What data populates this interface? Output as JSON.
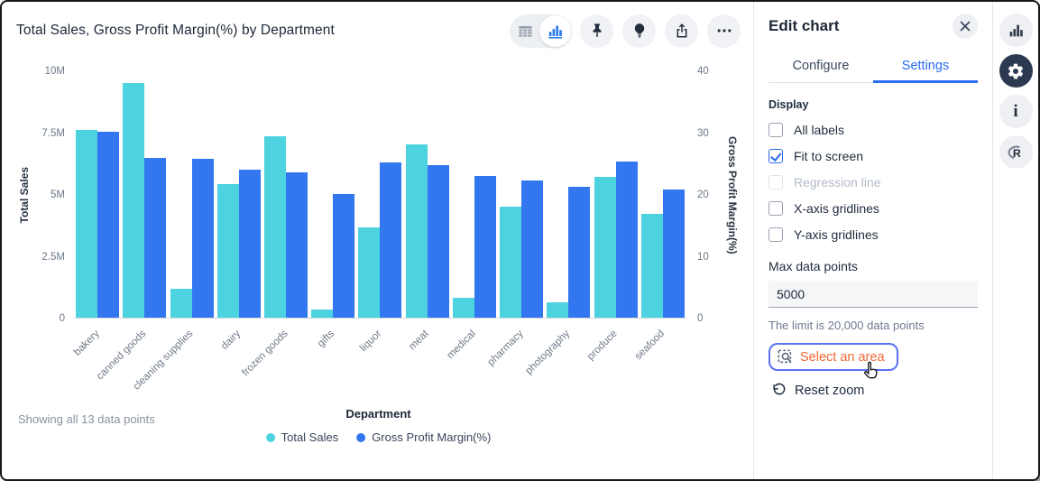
{
  "colors": {
    "series_total_sales": "#4CD3DF",
    "series_gross_profit_margin": "#3277EF",
    "accent_blue": "#2B6CF0",
    "action_orange": "#EF6A33",
    "focus_ring_blue": "#5A72F3",
    "active_rail_bg": "#2C3950"
  },
  "chart": {
    "title": "Total Sales, Gross Profit Margin(%) by Department",
    "footer_note": "Showing all 13 data points"
  },
  "chart_data": {
    "type": "bar",
    "title": "Total Sales, Gross Profit Margin(%) by Department",
    "categories": [
      "bakery",
      "canned goods",
      "cleaning supplies",
      "dairy",
      "frozen goods",
      "gifts",
      "liquor",
      "meat",
      "medical",
      "pharmacy",
      "photography",
      "produce",
      "seafood"
    ],
    "series": [
      {
        "name": "Total Sales",
        "axis": "left",
        "color": "#4CD3DF",
        "unit": "millions",
        "values": [
          7.6,
          9.5,
          1.15,
          5.4,
          7.35,
          0.33,
          3.65,
          7.0,
          0.8,
          4.5,
          0.62,
          5.7,
          4.2
        ]
      },
      {
        "name": "Gross Profit Margin(%)",
        "axis": "right",
        "color": "#3277EF",
        "values": [
          30.1,
          25.9,
          25.7,
          23.9,
          23.5,
          20.0,
          25.1,
          24.6,
          22.9,
          22.2,
          21.2,
          25.2,
          20.8
        ]
      }
    ],
    "left_axis": {
      "title": "Total Sales",
      "ticks": [
        "0",
        "2.5M",
        "5M",
        "7.5M",
        "10M"
      ],
      "min": 0,
      "max": 10
    },
    "right_axis": {
      "title": "Gross Profit Margin(%)",
      "ticks": [
        "0",
        "10",
        "20",
        "30",
        "40"
      ],
      "min": 0,
      "max": 40
    },
    "legend": {
      "title": "Department",
      "position": "bottom",
      "items": [
        "Total Sales",
        "Gross Profit Margin(%)"
      ]
    },
    "gridlines": false
  },
  "panel": {
    "title": "Edit chart",
    "tabs": [
      {
        "label": "Configure",
        "active": false
      },
      {
        "label": "Settings",
        "active": true
      }
    ],
    "display": {
      "heading": "Display",
      "options": [
        {
          "label": "All labels",
          "checked": false,
          "disabled": false
        },
        {
          "label": "Fit to screen",
          "checked": true,
          "disabled": false
        },
        {
          "label": "Regression line",
          "checked": false,
          "disabled": true
        },
        {
          "label": "X-axis gridlines",
          "checked": false,
          "disabled": false
        },
        {
          "label": "Y-axis gridlines",
          "checked": false,
          "disabled": false
        }
      ]
    },
    "max_data_points": {
      "label": "Max data points",
      "value": "5000",
      "helper": "The limit is 20,000 data points"
    },
    "actions": {
      "select_area_label": "Select an area",
      "reset_zoom_label": "Reset zoom"
    }
  }
}
